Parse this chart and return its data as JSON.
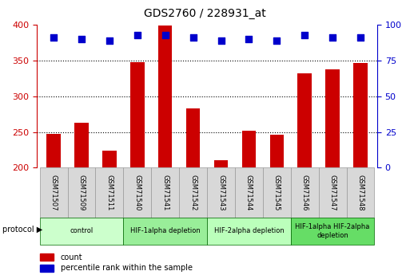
{
  "title": "GDS2760 / 228931_at",
  "samples": [
    "GSM71507",
    "GSM71509",
    "GSM71511",
    "GSM71540",
    "GSM71541",
    "GSM71542",
    "GSM71543",
    "GSM71544",
    "GSM71545",
    "GSM71546",
    "GSM71547",
    "GSM71548"
  ],
  "counts": [
    247,
    263,
    224,
    348,
    399,
    283,
    211,
    252,
    246,
    332,
    338,
    346
  ],
  "percentile_ranks": [
    91,
    90,
    89,
    93,
    93,
    91,
    89,
    90,
    89,
    93,
    91,
    91
  ],
  "ylim_left": [
    200,
    400
  ],
  "ylim_right": [
    0,
    100
  ],
  "yticks_left": [
    200,
    250,
    300,
    350,
    400
  ],
  "yticks_right": [
    0,
    25,
    50,
    75,
    100
  ],
  "bar_color": "#cc0000",
  "dot_color": "#0000cc",
  "grid_color": "#000000",
  "protocol_groups": [
    {
      "label": "control",
      "start": 0,
      "end": 2,
      "color": "#ccffcc"
    },
    {
      "label": "HIF-1alpha depletion",
      "start": 3,
      "end": 5,
      "color": "#99ee99"
    },
    {
      "label": "HIF-2alpha depletion",
      "start": 6,
      "end": 8,
      "color": "#bbffbb"
    },
    {
      "label": "HIF-1alpha HIF-2alpha\ndepletion",
      "start": 9,
      "end": 11,
      "color": "#66dd66"
    }
  ],
  "left_axis_color": "#cc0000",
  "right_axis_color": "#0000cc",
  "tick_label_color_left": "#cc0000",
  "tick_label_color_right": "#0000cc",
  "bar_width": 0.5,
  "legend_items": [
    {
      "label": "count",
      "color": "#cc0000"
    },
    {
      "label": "percentile rank within the sample",
      "color": "#0000cc"
    }
  ],
  "protocol_label": "protocol",
  "xlabel_color": "#000000",
  "background_plot": "#f0f0f0",
  "background_protocol": "#dddddd"
}
